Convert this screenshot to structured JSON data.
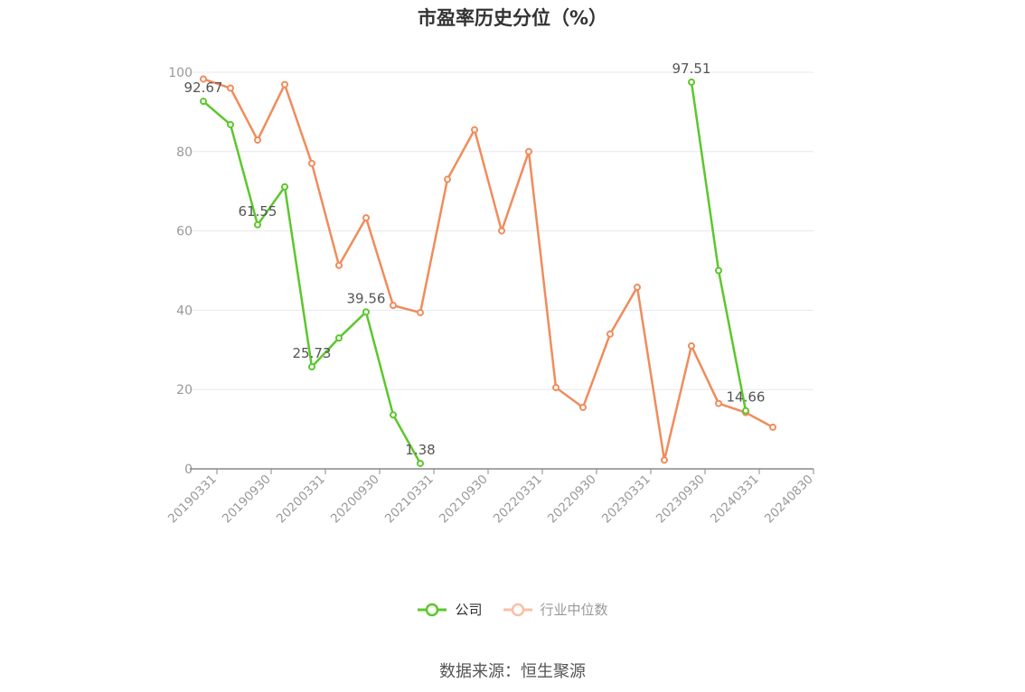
{
  "title": "市盈率历史分位（%）",
  "source_label": "数据来源：恒生聚源",
  "colors": {
    "company": "#5cc72c",
    "industry": "#f08c5c",
    "grid": "#e6e8ef",
    "axis": "#999999"
  },
  "chart_data": {
    "type": "line",
    "title": "市盈率历史分位（%）",
    "x": [
      "20190331",
      "20190630",
      "20190930",
      "20191231",
      "20200331",
      "20200630",
      "20200930",
      "20201231",
      "20210331",
      "20210630",
      "20210930",
      "20211231",
      "20220331",
      "20220630",
      "20220930",
      "20221231",
      "20230331",
      "20230630",
      "20230930",
      "20231231",
      "20240331",
      "20240630",
      "20240830"
    ],
    "x_tick_labels": [
      "20190331",
      "20190930",
      "20200331",
      "20200930",
      "20210331",
      "20210930",
      "20220331",
      "20220930",
      "20230331",
      "20230930",
      "20240331",
      "20240830"
    ],
    "ylim": [
      0,
      100
    ],
    "y_ticks": [
      0,
      20,
      40,
      60,
      80,
      100
    ],
    "grid": true,
    "legend_position": "bottom",
    "series": [
      {
        "name": "公司",
        "values": [
          92.67,
          86.8,
          61.55,
          71.1,
          25.73,
          33.0,
          39.56,
          13.6,
          1.38,
          null,
          null,
          null,
          null,
          null,
          null,
          null,
          null,
          null,
          97.51,
          50.0,
          14.66,
          null,
          null
        ],
        "labels": {
          "0": "92.67",
          "2": "61.55",
          "4": "25.73",
          "6": "39.56",
          "8": "1.38",
          "18": "97.51",
          "20": "14.66"
        }
      },
      {
        "name": "行业中位数",
        "values": [
          98.3,
          96.0,
          82.9,
          96.9,
          77.0,
          51.3,
          63.3,
          41.2,
          39.4,
          73.0,
          85.5,
          60.0,
          80.0,
          20.5,
          15.5,
          34.0,
          45.8,
          2.2,
          31.0,
          16.5,
          14.2,
          10.5,
          null
        ]
      }
    ]
  }
}
